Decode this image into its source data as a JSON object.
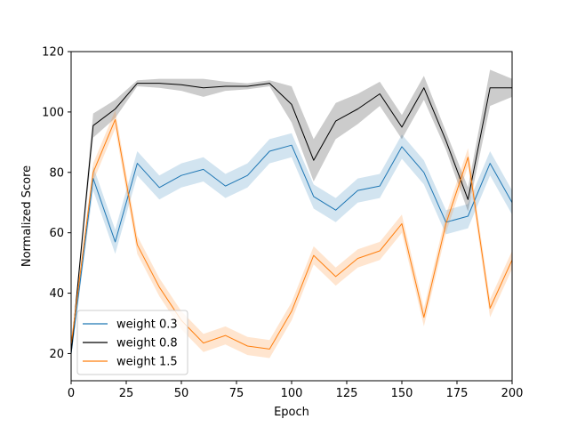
{
  "chart_data": {
    "type": "line",
    "title": "",
    "xlabel": "Epoch",
    "ylabel": "Normalized Score",
    "xlim": [
      0,
      200
    ],
    "ylim": [
      11,
      120
    ],
    "xticks": [
      0,
      25,
      50,
      75,
      100,
      125,
      150,
      175,
      200
    ],
    "yticks": [
      20,
      40,
      60,
      80,
      100,
      120
    ],
    "grid": false,
    "legend_position": "bottom-left",
    "x": [
      0,
      10,
      20,
      30,
      40,
      50,
      60,
      70,
      80,
      90,
      100,
      110,
      120,
      130,
      140,
      150,
      160,
      170,
      180,
      190,
      200
    ],
    "series": [
      {
        "name": "weight 0.3",
        "color": "#1f77b4",
        "values": [
          20,
          78,
          57,
          83,
          75,
          79,
          81,
          75.5,
          79,
          87,
          89,
          72,
          67.5,
          74,
          75.5,
          88.5,
          80,
          63.5,
          65.5,
          83,
          70
        ],
        "spread": [
          1,
          4,
          4,
          4,
          4,
          4,
          4,
          4,
          4,
          4,
          4,
          4,
          4,
          4,
          4,
          4,
          4,
          4,
          4,
          4,
          4
        ]
      },
      {
        "name": "weight 0.8",
        "color": "#000000",
        "values": [
          20,
          95.5,
          101,
          109.5,
          109.5,
          109,
          108,
          108.5,
          108.5,
          109.5,
          102.5,
          84,
          97,
          101,
          106,
          95,
          108,
          90.5,
          71,
          108,
          108
        ],
        "spread": [
          1,
          4,
          3,
          1,
          1.5,
          2,
          3,
          1.5,
          1,
          1,
          6,
          7,
          6,
          5,
          4,
          4,
          4,
          3,
          4,
          6,
          3
        ]
      },
      {
        "name": "weight 1.5",
        "color": "#ff7f0e",
        "values": [
          23,
          80,
          97.5,
          56,
          42,
          31,
          23.5,
          26,
          22.5,
          21.5,
          34,
          52.5,
          45.5,
          51.5,
          54,
          63,
          32,
          63,
          85,
          35,
          51
        ],
        "spread": [
          1,
          3,
          3,
          3,
          3,
          3,
          3,
          3,
          3,
          3,
          3,
          3,
          3,
          3,
          3,
          3,
          3,
          3,
          3,
          3,
          3
        ]
      }
    ]
  }
}
